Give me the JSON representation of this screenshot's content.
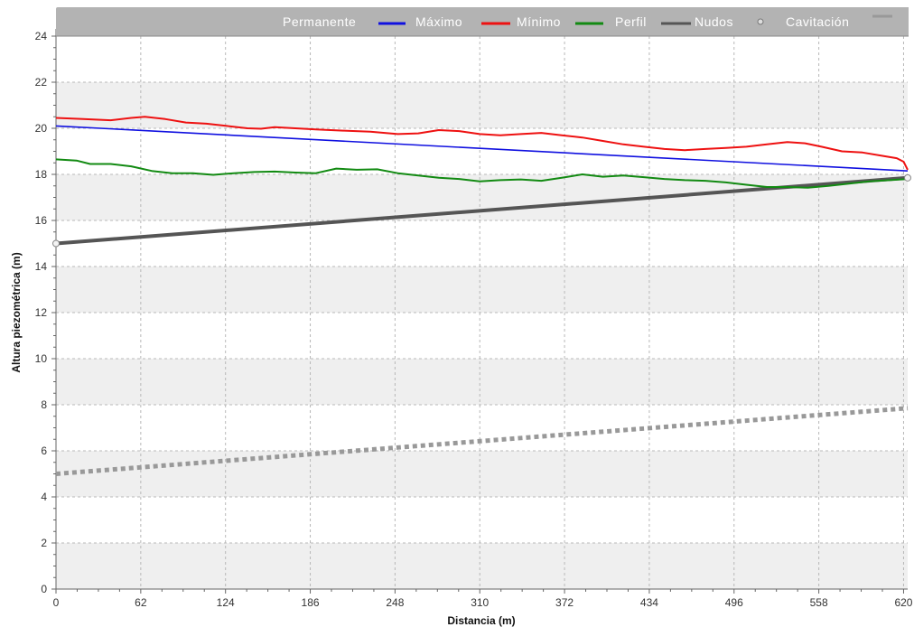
{
  "chart_data": {
    "type": "line",
    "xlabel": "Distancia (m)",
    "ylabel": "Altura piezométrica (m)",
    "xlim": [
      0,
      623
    ],
    "ylim": [
      0,
      24
    ],
    "x_ticks": [
      0,
      62,
      124,
      186,
      248,
      310,
      372,
      434,
      496,
      558,
      620
    ],
    "y_ticks": [
      0,
      2,
      4,
      6,
      8,
      10,
      12,
      14,
      16,
      18,
      20,
      22,
      24
    ],
    "grid": true,
    "legend_position": "top-right",
    "legend": [
      {
        "name": "Permanente",
        "color": "#1010e0",
        "symbol": "line"
      },
      {
        "name": "Máximo",
        "color": "#ee1111",
        "symbol": "line"
      },
      {
        "name": "Mínimo",
        "color": "#128a12",
        "symbol": "line"
      },
      {
        "name": "Perfil",
        "color": "#555555",
        "symbol": "thick-line"
      },
      {
        "name": "Nudos",
        "color": "#dddddd",
        "symbol": "circle"
      },
      {
        "name": "Cavitación",
        "color": "#999999",
        "symbol": "dotted-line"
      }
    ],
    "series": [
      {
        "name": "Permanente",
        "color": "#1010e0",
        "x": [
          0,
          623
        ],
        "y": [
          20.1,
          18.15
        ]
      },
      {
        "name": "Máximo",
        "color": "#ee1111",
        "x": [
          0,
          20,
          40,
          55,
          65,
          80,
          95,
          110,
          125,
          140,
          150,
          160,
          175,
          190,
          210,
          230,
          250,
          265,
          280,
          295,
          310,
          325,
          340,
          355,
          370,
          385,
          400,
          415,
          430,
          445,
          460,
          475,
          490,
          505,
          520,
          535,
          548,
          560,
          575,
          590,
          605,
          615,
          620,
          623
        ],
        "y": [
          20.45,
          20.4,
          20.35,
          20.45,
          20.5,
          20.4,
          20.25,
          20.2,
          20.1,
          20.0,
          19.98,
          20.05,
          20.0,
          19.95,
          19.9,
          19.85,
          19.75,
          19.78,
          19.92,
          19.88,
          19.75,
          19.7,
          19.75,
          19.8,
          19.7,
          19.6,
          19.45,
          19.3,
          19.2,
          19.1,
          19.05,
          19.1,
          19.15,
          19.2,
          19.3,
          19.4,
          19.35,
          19.2,
          19.0,
          18.95,
          18.8,
          18.7,
          18.55,
          18.2
        ]
      },
      {
        "name": "Mínimo",
        "color": "#128a12",
        "x": [
          0,
          15,
          25,
          40,
          55,
          70,
          85,
          100,
          115,
          130,
          145,
          160,
          175,
          190,
          205,
          220,
          235,
          250,
          265,
          280,
          295,
          310,
          325,
          340,
          355,
          370,
          385,
          400,
          415,
          430,
          445,
          460,
          475,
          490,
          505,
          520,
          535,
          550,
          565,
          580,
          595,
          610,
          623
        ],
        "y": [
          18.65,
          18.6,
          18.45,
          18.45,
          18.35,
          18.15,
          18.05,
          18.05,
          17.98,
          18.05,
          18.1,
          18.12,
          18.08,
          18.05,
          18.25,
          18.2,
          18.22,
          18.05,
          17.95,
          17.85,
          17.8,
          17.7,
          17.75,
          17.78,
          17.72,
          17.85,
          18.0,
          17.9,
          17.95,
          17.88,
          17.8,
          17.75,
          17.72,
          17.65,
          17.55,
          17.45,
          17.45,
          17.42,
          17.5,
          17.6,
          17.7,
          17.75,
          17.8
        ]
      },
      {
        "name": "Perfil",
        "color": "#555555",
        "x": [
          0,
          623
        ],
        "y": [
          15.0,
          17.85
        ]
      },
      {
        "name": "Cavitación",
        "color": "#999999",
        "x": [
          0,
          623
        ],
        "y": [
          5.0,
          7.85
        ]
      }
    ],
    "nodes": {
      "x": [
        0,
        623
      ],
      "y": [
        15.0,
        17.85
      ]
    }
  }
}
